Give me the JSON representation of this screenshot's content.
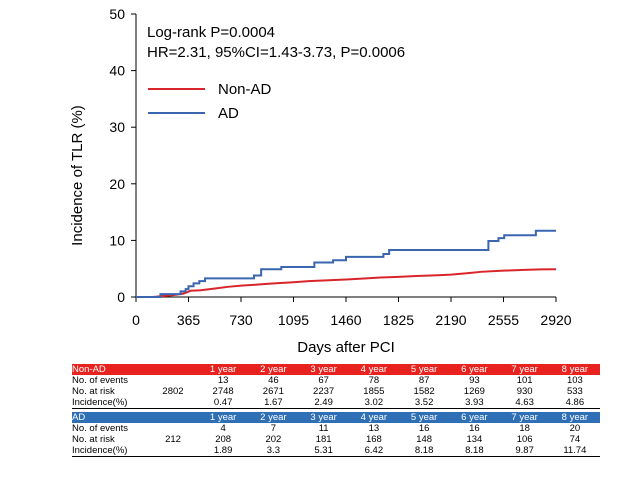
{
  "chart_data": {
    "type": "line",
    "ylabel": "Incidence of TLR (%)",
    "xlabel": "Days after PCI",
    "xlim": [
      0,
      2920
    ],
    "ylim": [
      0,
      50
    ],
    "x_ticks": [
      "0",
      "365",
      "730",
      "1095",
      "1460",
      "1825",
      "2190",
      "2555",
      "2920"
    ],
    "y_ticks": [
      "0",
      "10",
      "20",
      "30",
      "40",
      "50"
    ],
    "annotations": [
      "Log-rank P=0.0004",
      "HR=2.31, 95%CI=1.43-3.73, P=0.0006"
    ],
    "series": [
      {
        "name": "Non-AD",
        "color": "#d9252a",
        "points": [
          [
            0,
            0
          ],
          [
            120,
            0
          ],
          [
            180,
            0.15
          ],
          [
            250,
            0.3
          ],
          [
            330,
            0.6
          ],
          [
            380,
            1.1
          ],
          [
            450,
            1.2
          ],
          [
            550,
            1.5
          ],
          [
            640,
            1.8
          ],
          [
            730,
            2.0
          ],
          [
            850,
            2.2
          ],
          [
            960,
            2.4
          ],
          [
            1095,
            2.6
          ],
          [
            1200,
            2.8
          ],
          [
            1340,
            2.95
          ],
          [
            1460,
            3.1
          ],
          [
            1600,
            3.3
          ],
          [
            1700,
            3.45
          ],
          [
            1825,
            3.55
          ],
          [
            1950,
            3.7
          ],
          [
            2100,
            3.85
          ],
          [
            2190,
            3.95
          ],
          [
            2300,
            4.2
          ],
          [
            2400,
            4.45
          ],
          [
            2555,
            4.65
          ],
          [
            2700,
            4.8
          ],
          [
            2810,
            4.88
          ],
          [
            2920,
            4.9
          ]
        ]
      },
      {
        "name": "AD",
        "color": "#3a66b0",
        "steps": [
          [
            0,
            0
          ],
          [
            170,
            0.5
          ],
          [
            310,
            1.0
          ],
          [
            345,
            1.4
          ],
          [
            365,
            1.9
          ],
          [
            400,
            2.4
          ],
          [
            440,
            2.8
          ],
          [
            480,
            3.3
          ],
          [
            820,
            3.8
          ],
          [
            870,
            4.9
          ],
          [
            1010,
            5.3
          ],
          [
            1240,
            6.1
          ],
          [
            1370,
            6.5
          ],
          [
            1460,
            7.1
          ],
          [
            1720,
            7.6
          ],
          [
            1760,
            8.3
          ],
          [
            2450,
            9.9
          ],
          [
            2520,
            10.4
          ],
          [
            2560,
            10.9
          ],
          [
            2780,
            11.7
          ],
          [
            2920,
            11.7
          ]
        ]
      }
    ]
  },
  "risk_table": {
    "years": [
      "1 year",
      "2 year",
      "3 year",
      "4 year",
      "5 year",
      "6 year",
      "7 year",
      "8 year"
    ],
    "groups": [
      {
        "name": "Non-AD",
        "n": "2802",
        "events_label": "No. of events",
        "events": [
          "13",
          "46",
          "67",
          "78",
          "87",
          "93",
          "101",
          "103"
        ],
        "risk_label": "No. at risk",
        "at_risk": [
          "2748",
          "2671",
          "2237",
          "1855",
          "1582",
          "1269",
          "930",
          "533"
        ],
        "incidence_label": "Incidence(%)",
        "incidence": [
          "0.47",
          "1.67",
          "2.49",
          "3.02",
          "3.52",
          "3.93",
          "4.63",
          "4.86"
        ]
      },
      {
        "name": "AD",
        "n": "212",
        "events_label": "No. of events",
        "events": [
          "4",
          "7",
          "11",
          "13",
          "16",
          "16",
          "18",
          "20"
        ],
        "risk_label": "No. at risk",
        "at_risk": [
          "208",
          "202",
          "181",
          "168",
          "148",
          "134",
          "106",
          "74"
        ],
        "incidence_label": "Incidence(%)",
        "incidence": [
          "1.89",
          "3.3",
          "5.31",
          "6.42",
          "8.18",
          "8.18",
          "9.87",
          "11.74"
        ]
      }
    ]
  }
}
